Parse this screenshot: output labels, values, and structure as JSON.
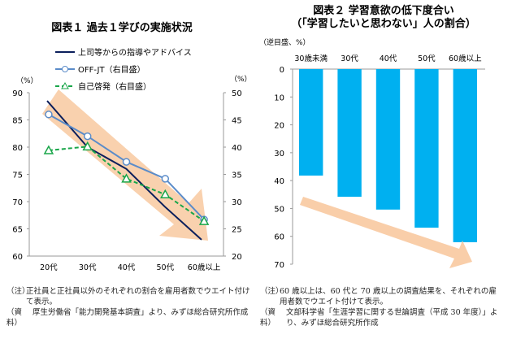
{
  "chart_data": [
    {
      "type": "line",
      "title": "図表１ 過去１学びの実施状況",
      "categories": [
        "20代",
        "30代",
        "40代",
        "50代",
        "60歳以上"
      ],
      "y_left": {
        "label": "（%）",
        "range": [
          60,
          90
        ],
        "ticks": [
          "60",
          "65",
          "70",
          "75",
          "80",
          "85",
          "90"
        ]
      },
      "y_right": {
        "label": "（%）",
        "range": [
          20,
          50
        ],
        "ticks": [
          "20",
          "25",
          "30",
          "35",
          "40",
          "45",
          "50"
        ]
      },
      "legend_position": "top",
      "series": [
        {
          "name": "上司等からの指導やアドバイス",
          "axis": "left",
          "color": "#0b1f5c",
          "marker": "none",
          "values": [
            88.5,
            80,
            76,
            69,
            63
          ]
        },
        {
          "name": "OFF-JT（右目盛）",
          "axis": "right",
          "color": "#5b8cc9",
          "marker": "circle",
          "values": [
            46,
            42,
            37.3,
            34.2,
            26.7
          ]
        },
        {
          "name": "自己啓発（右目盛）",
          "axis": "right",
          "color": "#1aa64a",
          "marker": "triangle",
          "dashed": true,
          "values": [
            39.4,
            40.1,
            34.2,
            31.3,
            26.4
          ]
        }
      ],
      "arrow_color": "#f8c9a0"
    },
    {
      "type": "bar",
      "title": "図表２ 学習意欲の低下度合い",
      "subtitle": "（「学習したいと思わない」人の割合）",
      "ylabel": "（逆目盛、%）",
      "reversed_axis": true,
      "ylim": [
        0,
        70
      ],
      "ticks": [
        "0",
        "10",
        "20",
        "30",
        "40",
        "50",
        "60",
        "70"
      ],
      "categories": [
        "30歳未満",
        "30代",
        "40代",
        "50代",
        "60歳以上"
      ],
      "values": [
        38.2,
        45.8,
        50.4,
        56.9,
        62.1
      ],
      "bar_color": "#00b0f0",
      "arrow_color": "#f8c9a0"
    }
  ],
  "notes_left": {
    "note_label": "（注）",
    "note": "正社員と正社員以外のそれぞれの割合を雇用者数でウエイト付けて表示。",
    "source_label": "（資料）",
    "source": "厚生労働省「能力開発基本調査」より、みずほ総合研究所作成"
  },
  "notes_right": {
    "note_label": "（注）",
    "note": "60 歳以上は、60 代と 70 歳以上の調査結果を、それぞれの雇用者数でウエイト付けて表示。",
    "source_label": "（資料）",
    "source": "文部科学省「生涯学習に関する世論調査（平成 30 年度）」より、みずほ総合研究所作成"
  }
}
